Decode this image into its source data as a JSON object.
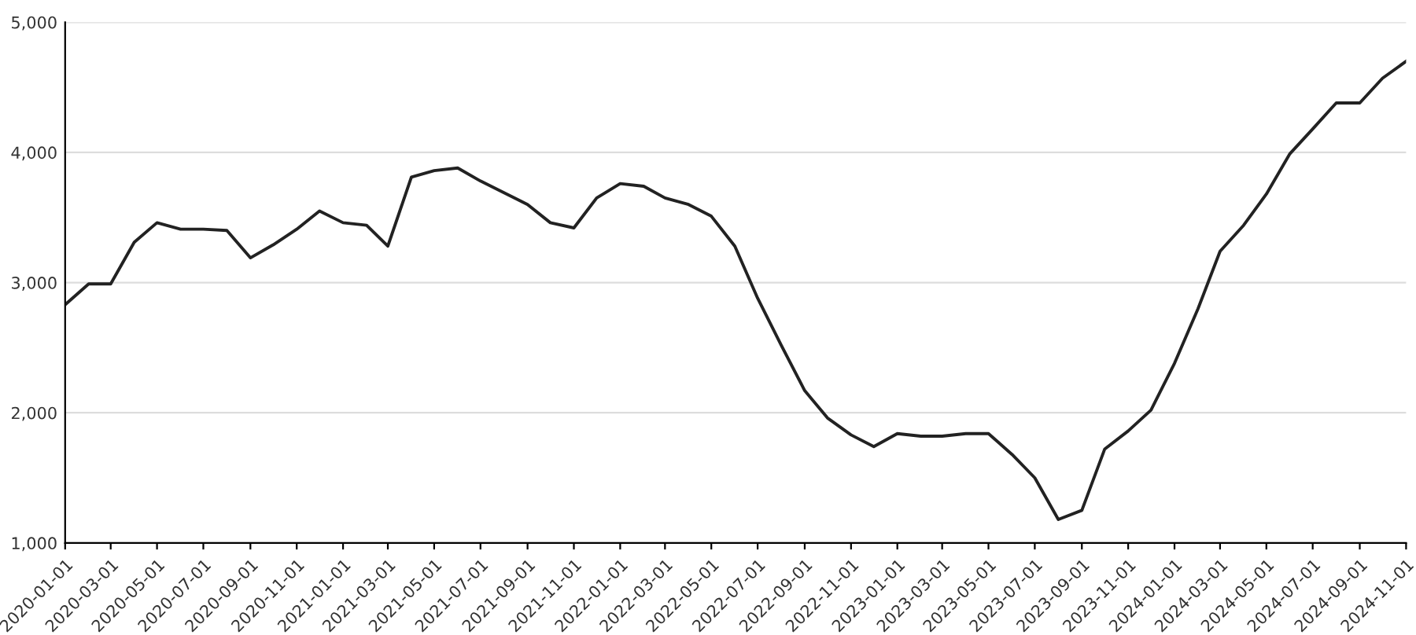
{
  "chart_data": {
    "type": "line",
    "x": [
      "2020-01",
      "2020-02",
      "2020-03",
      "2020-04",
      "2020-05",
      "2020-06",
      "2020-07",
      "2020-08",
      "2020-09",
      "2020-10",
      "2020-11",
      "2020-12",
      "2021-01",
      "2021-02",
      "2021-03",
      "2021-04",
      "2021-05",
      "2021-06",
      "2021-07",
      "2021-08",
      "2021-09",
      "2021-10",
      "2021-11",
      "2021-12",
      "2022-01",
      "2022-02",
      "2022-03",
      "2022-04",
      "2022-05",
      "2022-06",
      "2022-07",
      "2022-08",
      "2022-09",
      "2022-10",
      "2022-11",
      "2022-12",
      "2023-01",
      "2023-02",
      "2023-03",
      "2023-04",
      "2023-05",
      "2023-06",
      "2023-07",
      "2023-08",
      "2023-09",
      "2023-10",
      "2023-11",
      "2023-12",
      "2024-01",
      "2024-02",
      "2024-03",
      "2024-04",
      "2024-05",
      "2024-06",
      "2024-07",
      "2024-08",
      "2024-09",
      "2024-10",
      "2024-11"
    ],
    "series": [
      {
        "color": "#222222",
        "values": [
          2830,
          2990,
          2990,
          3310,
          3460,
          3410,
          3410,
          3400,
          3190,
          3290,
          3410,
          3550,
          3460,
          3440,
          3280,
          3810,
          3860,
          3880,
          3780,
          3690,
          3600,
          3460,
          3420,
          3650,
          3760,
          3740,
          3650,
          3600,
          3510,
          3280,
          2880,
          2520,
          2170,
          1960,
          1830,
          1740,
          1840,
          1820,
          1820,
          1840,
          1840,
          1680,
          1500,
          1180,
          1250,
          1720,
          1860,
          2020,
          2380,
          2800,
          3240,
          3440,
          3680,
          3990,
          4180,
          4380,
          4380,
          4570,
          4700
        ]
      }
    ],
    "xlim": [
      "2020-01",
      "2024-11"
    ],
    "xticks": [
      {
        "value": "2020-01",
        "label": "2020-01-01"
      },
      {
        "value": "2020-03",
        "label": "2020-03-01"
      },
      {
        "value": "2020-05",
        "label": "2020-05-01"
      },
      {
        "value": "2020-07",
        "label": "2020-07-01"
      },
      {
        "value": "2020-09",
        "label": "2020-09-01"
      },
      {
        "value": "2020-11",
        "label": "2020-11-01"
      },
      {
        "value": "2021-01",
        "label": "2021-01-01"
      },
      {
        "value": "2021-03",
        "label": "2021-03-01"
      },
      {
        "value": "2021-05",
        "label": "2021-05-01"
      },
      {
        "value": "2021-07",
        "label": "2021-07-01"
      },
      {
        "value": "2021-09",
        "label": "2021-09-01"
      },
      {
        "value": "2021-11",
        "label": "2021-11-01"
      },
      {
        "value": "2022-01",
        "label": "2022-01-01"
      },
      {
        "value": "2022-03",
        "label": "2022-03-01"
      },
      {
        "value": "2022-05",
        "label": "2022-05-01"
      },
      {
        "value": "2022-07",
        "label": "2022-07-01"
      },
      {
        "value": "2022-09",
        "label": "2022-09-01"
      },
      {
        "value": "2022-11",
        "label": "2022-11-01"
      },
      {
        "value": "2023-01",
        "label": "2023-01-01"
      },
      {
        "value": "2023-03",
        "label": "2023-03-01"
      },
      {
        "value": "2023-05",
        "label": "2023-05-01"
      },
      {
        "value": "2023-07",
        "label": "2023-07-01"
      },
      {
        "value": "2023-09",
        "label": "2023-09-01"
      },
      {
        "value": "2023-11",
        "label": "2023-11-01"
      },
      {
        "value": "2024-01",
        "label": "2024-01-01"
      },
      {
        "value": "2024-03",
        "label": "2024-03-01"
      },
      {
        "value": "2024-05",
        "label": "2024-05-01"
      },
      {
        "value": "2024-07",
        "label": "2024-07-01"
      },
      {
        "value": "2024-09",
        "label": "2024-09-01"
      },
      {
        "value": "2024-11",
        "label": "2024-11-01"
      }
    ],
    "ylim": [
      1000,
      5000
    ],
    "yticks": [
      {
        "value": 1000,
        "label": "1,000"
      },
      {
        "value": 2000,
        "label": "2,000"
      },
      {
        "value": 3000,
        "label": "3,000"
      },
      {
        "value": 4000,
        "label": "4,000"
      },
      {
        "value": 5000,
        "label": "5,000"
      }
    ],
    "grid": "y",
    "marker": "none",
    "line_style": "solid"
  }
}
